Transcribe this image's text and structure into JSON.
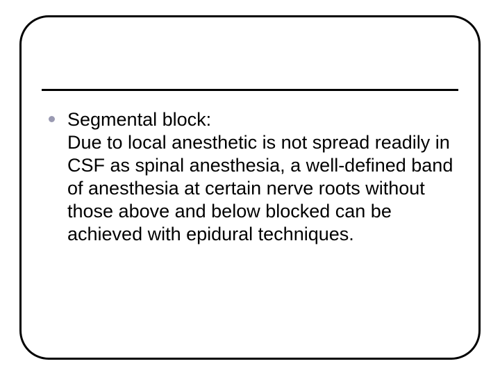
{
  "slide": {
    "background_color": "#ffffff",
    "frame": {
      "border_color": "#000000",
      "border_width": 3,
      "border_radius": 42
    },
    "divider": {
      "color": "#000000",
      "thickness": 3
    },
    "bullet": {
      "color": "#9a9ab2",
      "size": 9
    },
    "body": {
      "font_family": "Arial",
      "font_size": 27,
      "color": "#000000",
      "text": "Segmental block:\nDue to local anesthetic is not spread readily in CSF as spinal anesthesia, a well-defined band of anesthesia at certain nerve roots without those above and below blocked can be achieved with epidural techniques."
    }
  }
}
